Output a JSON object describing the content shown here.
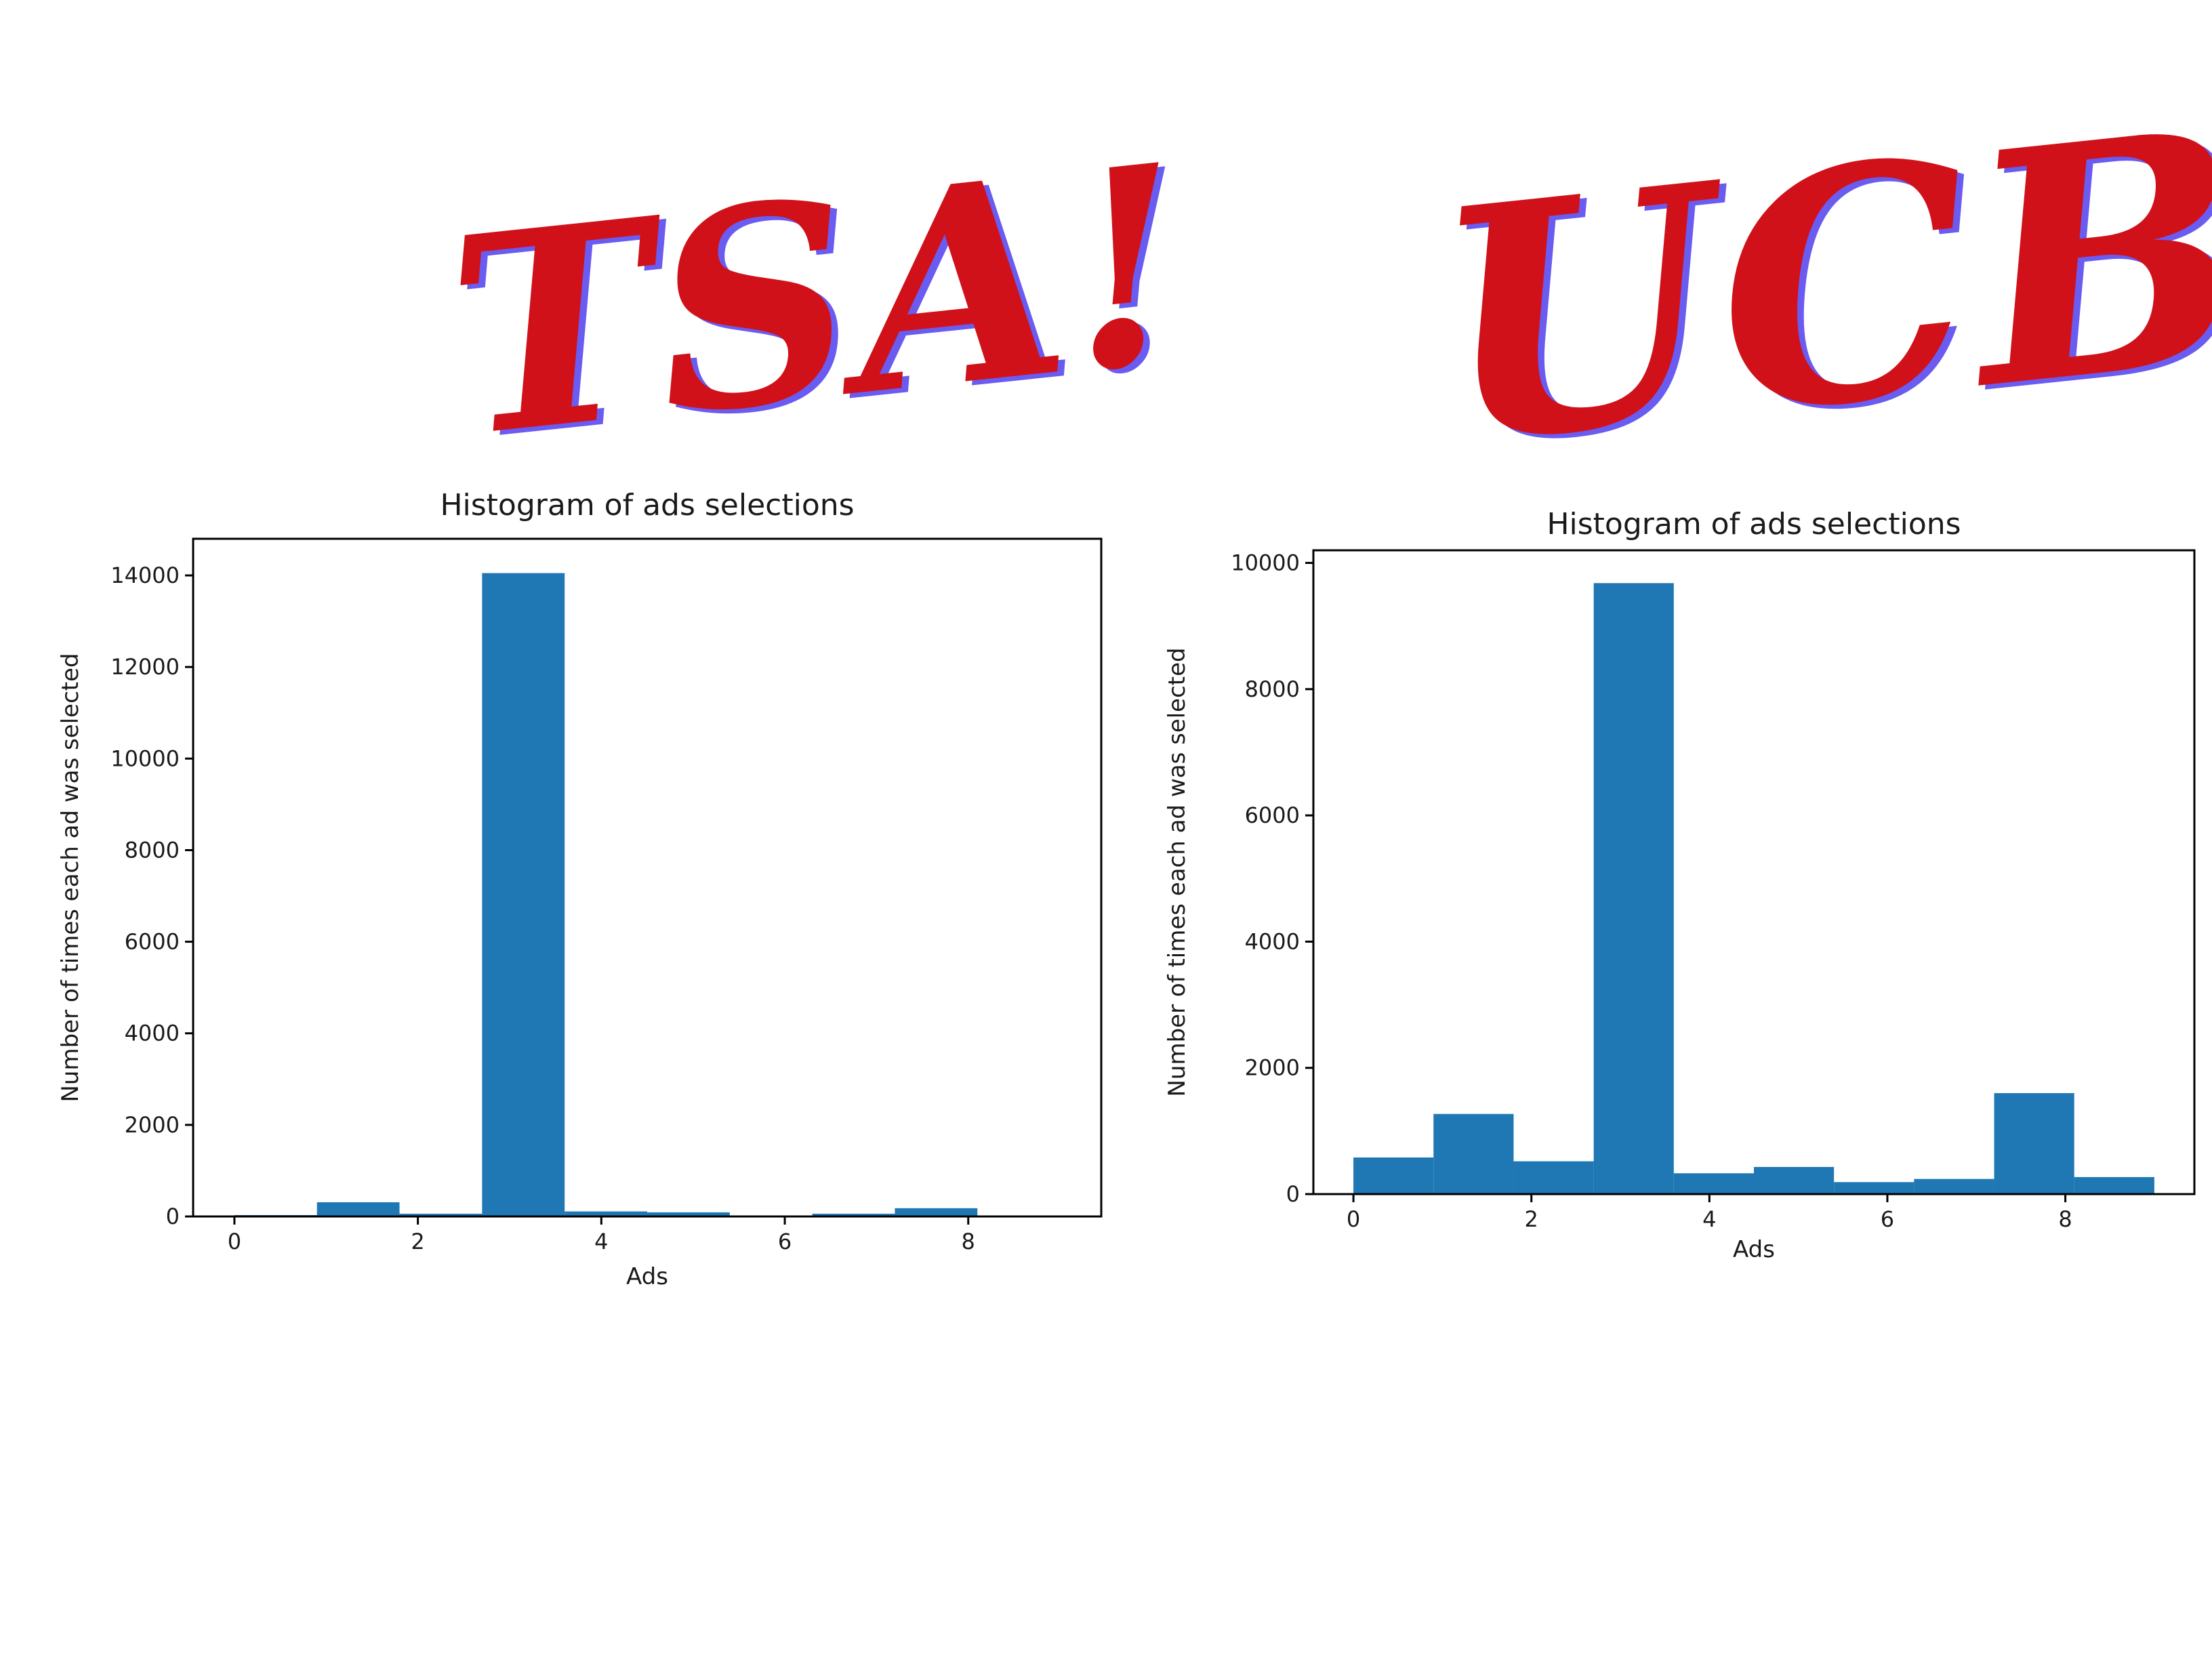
{
  "headlines": {
    "left": "TSA!",
    "right": "UCB!"
  },
  "colors": {
    "headline": "#d0111a",
    "headline_shadow": "#6a5cf0",
    "bar": "#1f77b4"
  },
  "chart_data": [
    {
      "type": "bar",
      "title": "Histogram of ads selections",
      "xlabel": "Ads",
      "ylabel": "Number of times each ad was selected",
      "xlim": [
        -0.45,
        9.45
      ],
      "ylim": [
        0,
        14800
      ],
      "xticks": [
        0,
        2,
        4,
        6,
        8
      ],
      "yticks": [
        0,
        2000,
        4000,
        6000,
        8000,
        10000,
        12000,
        14000
      ],
      "bin_edges": [
        0,
        0.9,
        1.8,
        2.7,
        3.6,
        4.5,
        5.4,
        6.3,
        7.2,
        8.1,
        9.0
      ],
      "values": [
        30,
        310,
        60,
        14050,
        110,
        90,
        20,
        60,
        180,
        20
      ]
    },
    {
      "type": "bar",
      "title": "Histogram of ads selections",
      "xlabel": "Ads",
      "ylabel": "Number of times each ad was selected",
      "xlim": [
        -0.45,
        9.45
      ],
      "ylim": [
        0,
        10200
      ],
      "xticks": [
        0,
        2,
        4,
        6,
        8
      ],
      "yticks": [
        0,
        2000,
        4000,
        6000,
        8000,
        10000
      ],
      "bin_edges": [
        0,
        0.9,
        1.8,
        2.7,
        3.6,
        4.5,
        5.4,
        6.3,
        7.2,
        8.1,
        9.0
      ],
      "values": [
        580,
        1270,
        520,
        9680,
        330,
        430,
        190,
        240,
        1600,
        270
      ]
    }
  ]
}
